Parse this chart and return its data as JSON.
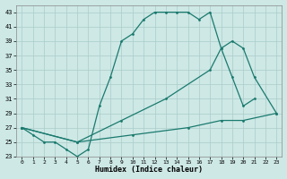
{
  "title": "",
  "xlabel": "Humidex (Indice chaleur)",
  "xlim": [
    -0.5,
    23.5
  ],
  "ylim": [
    23,
    44
  ],
  "yticks": [
    23,
    25,
    27,
    29,
    31,
    33,
    35,
    37,
    39,
    41,
    43
  ],
  "xticks": [
    0,
    1,
    2,
    3,
    4,
    5,
    6,
    7,
    8,
    9,
    10,
    11,
    12,
    13,
    14,
    15,
    16,
    17,
    18,
    19,
    20,
    21,
    22,
    23
  ],
  "bg_color": "#cde8e5",
  "grid_color": "#aaccca",
  "line_color": "#1a7a6e",
  "line1_x": [
    0,
    1,
    2,
    3,
    4,
    5,
    6,
    7,
    8,
    9,
    10,
    11,
    12,
    13,
    14,
    15,
    16,
    17,
    18,
    19,
    20,
    21
  ],
  "line1_y": [
    27,
    26,
    25,
    25,
    24,
    23,
    24,
    30,
    34,
    39,
    40,
    42,
    43,
    43,
    43,
    43,
    42,
    43,
    38,
    34,
    30,
    31
  ],
  "line2_x": [
    0,
    5,
    9,
    13,
    17,
    18,
    19,
    20,
    21,
    23
  ],
  "line2_y": [
    27,
    25,
    28,
    31,
    35,
    38,
    39,
    38,
    34,
    29
  ],
  "line3_x": [
    0,
    5,
    10,
    15,
    18,
    20,
    23
  ],
  "line3_y": [
    27,
    25,
    26,
    27,
    28,
    28,
    29
  ]
}
